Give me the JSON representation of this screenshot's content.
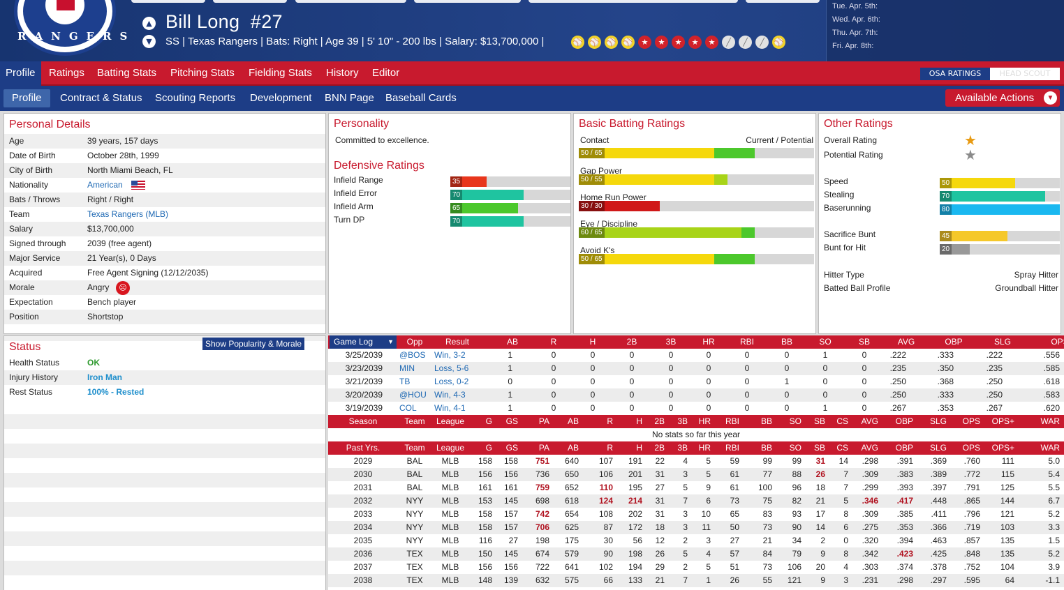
{
  "header": {
    "team_logo_text": "RANGERS",
    "player_name": "Bill Long",
    "number": "#27",
    "info_line": "SS | Texas Rangers  |  Bats: Right  |  Age 39  |  5' 10\" - 200 lbs  |  Salary: $13,700,000  |",
    "icons": [
      "ball",
      "ball",
      "ball",
      "ball",
      "star",
      "star",
      "star",
      "star",
      "star",
      "bat",
      "bat",
      "bat",
      "ball"
    ],
    "schedule": [
      "Tue. Apr. 5th:",
      "Wed. Apr. 6th:",
      "Thu. Apr. 7th:",
      "Fri. Apr. 8th:"
    ]
  },
  "main_tabs": [
    "Profile",
    "Ratings",
    "Batting Stats",
    "Pitching Stats",
    "Fielding Stats",
    "History",
    "Editor"
  ],
  "osa_button": "OSA RATINGS",
  "head_scout_button": "HEAD SCOUT",
  "sub_tabs": [
    "Profile",
    "Contract & Status",
    "Scouting Reports",
    "Development",
    "BNN Page",
    "Baseball Cards"
  ],
  "actions_button": "Available Actions",
  "personal": {
    "title": "Personal Details",
    "rows": [
      {
        "k": "Age",
        "v": "39 years, 157 days"
      },
      {
        "k": "Date of Birth",
        "v": "October 28th, 1999"
      },
      {
        "k": "City of Birth",
        "v": "North Miami Beach, FL"
      },
      {
        "k": "Nationality",
        "v": "American"
      },
      {
        "k": "Bats / Throws",
        "v": "Right / Right"
      },
      {
        "k": "Team",
        "v": "Texas Rangers (MLB)"
      },
      {
        "k": "Salary",
        "v": "$13,700,000"
      },
      {
        "k": "Signed through",
        "v": "2039 (free agent)"
      },
      {
        "k": "Major Service",
        "v": "21 Year(s), 0 Days"
      },
      {
        "k": "Acquired",
        "v": "Free Agent Signing (12/12/2035)"
      },
      {
        "k": "Morale",
        "v": "Angry"
      },
      {
        "k": "Expectation",
        "v": "Bench player"
      },
      {
        "k": "Position",
        "v": "Shortstop"
      }
    ]
  },
  "status": {
    "title": "Status",
    "button": "Show Popularity & Morale",
    "rows": [
      {
        "k": "Health Status",
        "v": "OK"
      },
      {
        "k": "Injury History",
        "v": "Iron Man"
      },
      {
        "k": "Rest Status",
        "v": "100% - Rested"
      }
    ]
  },
  "personality": {
    "title": "Personality",
    "text": "Committed to excellence."
  },
  "defense": {
    "title": "Defensive Ratings",
    "rows": [
      {
        "k": "Infield Range",
        "v": 35,
        "color": "#e8361c"
      },
      {
        "k": "Infield Error",
        "v": 70,
        "color": "#1fc4a0"
      },
      {
        "k": "Infield Arm",
        "v": 65,
        "color": "#4cc82c"
      },
      {
        "k": "Turn DP",
        "v": 70,
        "color": "#1fc4a0"
      }
    ]
  },
  "batting": {
    "title": "Basic Batting Ratings",
    "header_left": "Contact",
    "header_right": "Current / Potential",
    "rows": [
      {
        "k": "Contact",
        "cur": 50,
        "pot": 65,
        "label": "50 / 65",
        "c1": "#f5d80c",
        "c2": "#4cc82c"
      },
      {
        "k": "Gap Power",
        "cur": 50,
        "pot": 55,
        "label": "50 / 55",
        "c1": "#f5d80c",
        "c2": "#a8d418"
      },
      {
        "k": "Home Run Power",
        "cur": 30,
        "pot": 30,
        "label": "30 / 30",
        "c1": "#d01818",
        "c2": "#d01818"
      },
      {
        "k": "Eye / Discipline",
        "cur": 60,
        "pot": 65,
        "label": "60 / 65",
        "c1": "#a8d418",
        "c2": "#4cc82c"
      },
      {
        "k": "Avoid K's",
        "cur": 50,
        "pot": 65,
        "label": "50 / 65",
        "c1": "#f5d80c",
        "c2": "#4cc82c"
      }
    ]
  },
  "other": {
    "title": "Other Ratings",
    "overall": "Overall Rating",
    "potential": "Potential Rating",
    "bars": [
      {
        "k": "Speed",
        "v": 50,
        "color": "#f5d80c"
      },
      {
        "k": "Stealing",
        "v": 70,
        "color": "#1fc4a0"
      },
      {
        "k": "Baserunning",
        "v": 80,
        "color": "#1ab8f0"
      },
      {
        "k": "Sacrifice Bunt",
        "v": 45,
        "color": "#f5c82a"
      },
      {
        "k": "Bunt for Hit",
        "v": 20,
        "color": "#999"
      }
    ],
    "hitter_type_k": "Hitter Type",
    "hitter_type_v": "Spray Hitter",
    "bbp_k": "Batted Ball Profile",
    "bbp_v": "Groundball Hitter"
  },
  "gamelog": {
    "select": "Game Log",
    "headers": [
      "Opp",
      "Result",
      "AB",
      "R",
      "H",
      "2B",
      "3B",
      "HR",
      "RBI",
      "BB",
      "SO",
      "SB",
      "AVG",
      "OBP",
      "SLG",
      "OPS"
    ],
    "rows": [
      [
        "3/25/2039",
        "@BOS",
        "Win, 3-2",
        "1",
        "0",
        "0",
        "0",
        "0",
        "0",
        "0",
        "0",
        "1",
        "0",
        ".222",
        ".333",
        ".222",
        ".556"
      ],
      [
        "3/23/2039",
        "MIN",
        "Loss, 5-6",
        "1",
        "0",
        "0",
        "0",
        "0",
        "0",
        "0",
        "0",
        "0",
        "0",
        ".235",
        ".350",
        ".235",
        ".585"
      ],
      [
        "3/21/2039",
        "TB",
        "Loss, 0-2",
        "0",
        "0",
        "0",
        "0",
        "0",
        "0",
        "0",
        "1",
        "0",
        "0",
        ".250",
        ".368",
        ".250",
        ".618"
      ],
      [
        "3/20/2039",
        "@HOU",
        "Win, 4-3",
        "1",
        "0",
        "0",
        "0",
        "0",
        "0",
        "0",
        "0",
        "0",
        "0",
        ".250",
        ".333",
        ".250",
        ".583"
      ],
      [
        "3/19/2039",
        "COL",
        "Win, 4-1",
        "1",
        "0",
        "0",
        "0",
        "0",
        "0",
        "0",
        "0",
        "1",
        "0",
        ".267",
        ".353",
        ".267",
        ".620"
      ]
    ]
  },
  "season": {
    "headers": [
      "Season",
      "Team",
      "League",
      "G",
      "GS",
      "PA",
      "AB",
      "R",
      "H",
      "2B",
      "3B",
      "HR",
      "RBI",
      "BB",
      "SO",
      "SB",
      "CS",
      "AVG",
      "OBP",
      "SLG",
      "OPS",
      "OPS+",
      "WAR"
    ],
    "empty": "No stats so far this year"
  },
  "past": {
    "headers": [
      "Past Yrs.",
      "Team",
      "League",
      "G",
      "GS",
      "PA",
      "AB",
      "R",
      "H",
      "2B",
      "3B",
      "HR",
      "RBI",
      "BB",
      "SO",
      "SB",
      "CS",
      "AVG",
      "OBP",
      "SLG",
      "OPS",
      "OPS+",
      "WAR"
    ],
    "rows": [
      [
        "2029",
        "BAL",
        "MLB",
        "158",
        "158",
        "751",
        "640",
        "107",
        "191",
        "22",
        "4",
        "5",
        "59",
        "99",
        "99",
        "31",
        "14",
        ".298",
        ".391",
        ".369",
        ".760",
        "111",
        "5.0"
      ],
      [
        "2030",
        "BAL",
        "MLB",
        "156",
        "156",
        "736",
        "650",
        "106",
        "201",
        "31",
        "3",
        "5",
        "61",
        "77",
        "88",
        "26",
        "7",
        ".309",
        ".383",
        ".389",
        ".772",
        "115",
        "5.4"
      ],
      [
        "2031",
        "BAL",
        "MLB",
        "161",
        "161",
        "759",
        "652",
        "110",
        "195",
        "27",
        "5",
        "9",
        "61",
        "100",
        "96",
        "18",
        "7",
        ".299",
        ".393",
        ".397",
        ".791",
        "125",
        "5.5"
      ],
      [
        "2032",
        "NYY",
        "MLB",
        "153",
        "145",
        "698",
        "618",
        "124",
        "214",
        "31",
        "7",
        "6",
        "73",
        "75",
        "82",
        "21",
        "5",
        ".346",
        ".417",
        ".448",
        ".865",
        "144",
        "6.7"
      ],
      [
        "2033",
        "NYY",
        "MLB",
        "158",
        "157",
        "742",
        "654",
        "108",
        "202",
        "31",
        "3",
        "10",
        "65",
        "83",
        "93",
        "17",
        "8",
        ".309",
        ".385",
        ".411",
        ".796",
        "121",
        "5.2"
      ],
      [
        "2034",
        "NYY",
        "MLB",
        "158",
        "157",
        "706",
        "625",
        "87",
        "172",
        "18",
        "3",
        "11",
        "50",
        "73",
        "90",
        "14",
        "6",
        ".275",
        ".353",
        ".366",
        ".719",
        "103",
        "3.3"
      ],
      [
        "2035",
        "NYY",
        "MLB",
        "116",
        "27",
        "198",
        "175",
        "30",
        "56",
        "12",
        "2",
        "3",
        "27",
        "21",
        "34",
        "2",
        "0",
        ".320",
        ".394",
        ".463",
        ".857",
        "135",
        "1.5"
      ],
      [
        "2036",
        "TEX",
        "MLB",
        "150",
        "145",
        "674",
        "579",
        "90",
        "198",
        "26",
        "5",
        "4",
        "57",
        "84",
        "79",
        "9",
        "8",
        ".342",
        ".423",
        ".425",
        ".848",
        "135",
        "5.2"
      ],
      [
        "2037",
        "TEX",
        "MLB",
        "156",
        "156",
        "722",
        "641",
        "102",
        "194",
        "29",
        "2",
        "5",
        "51",
        "73",
        "106",
        "20",
        "4",
        ".303",
        ".374",
        ".378",
        ".752",
        "104",
        "3.9"
      ],
      [
        "2038",
        "TEX",
        "MLB",
        "148",
        "139",
        "632",
        "575",
        "66",
        "133",
        "21",
        "7",
        "1",
        "26",
        "55",
        "121",
        "9",
        "3",
        ".231",
        ".298",
        ".297",
        ".595",
        "64",
        "-1.1"
      ]
    ],
    "highlights": [
      [
        0,
        5
      ],
      [
        0,
        15
      ],
      [
        1,
        15
      ],
      [
        2,
        5
      ],
      [
        2,
        7
      ],
      [
        3,
        7
      ],
      [
        3,
        8
      ],
      [
        3,
        17
      ],
      [
        3,
        18
      ],
      [
        4,
        5
      ],
      [
        5,
        5
      ],
      [
        7,
        18
      ]
    ]
  }
}
